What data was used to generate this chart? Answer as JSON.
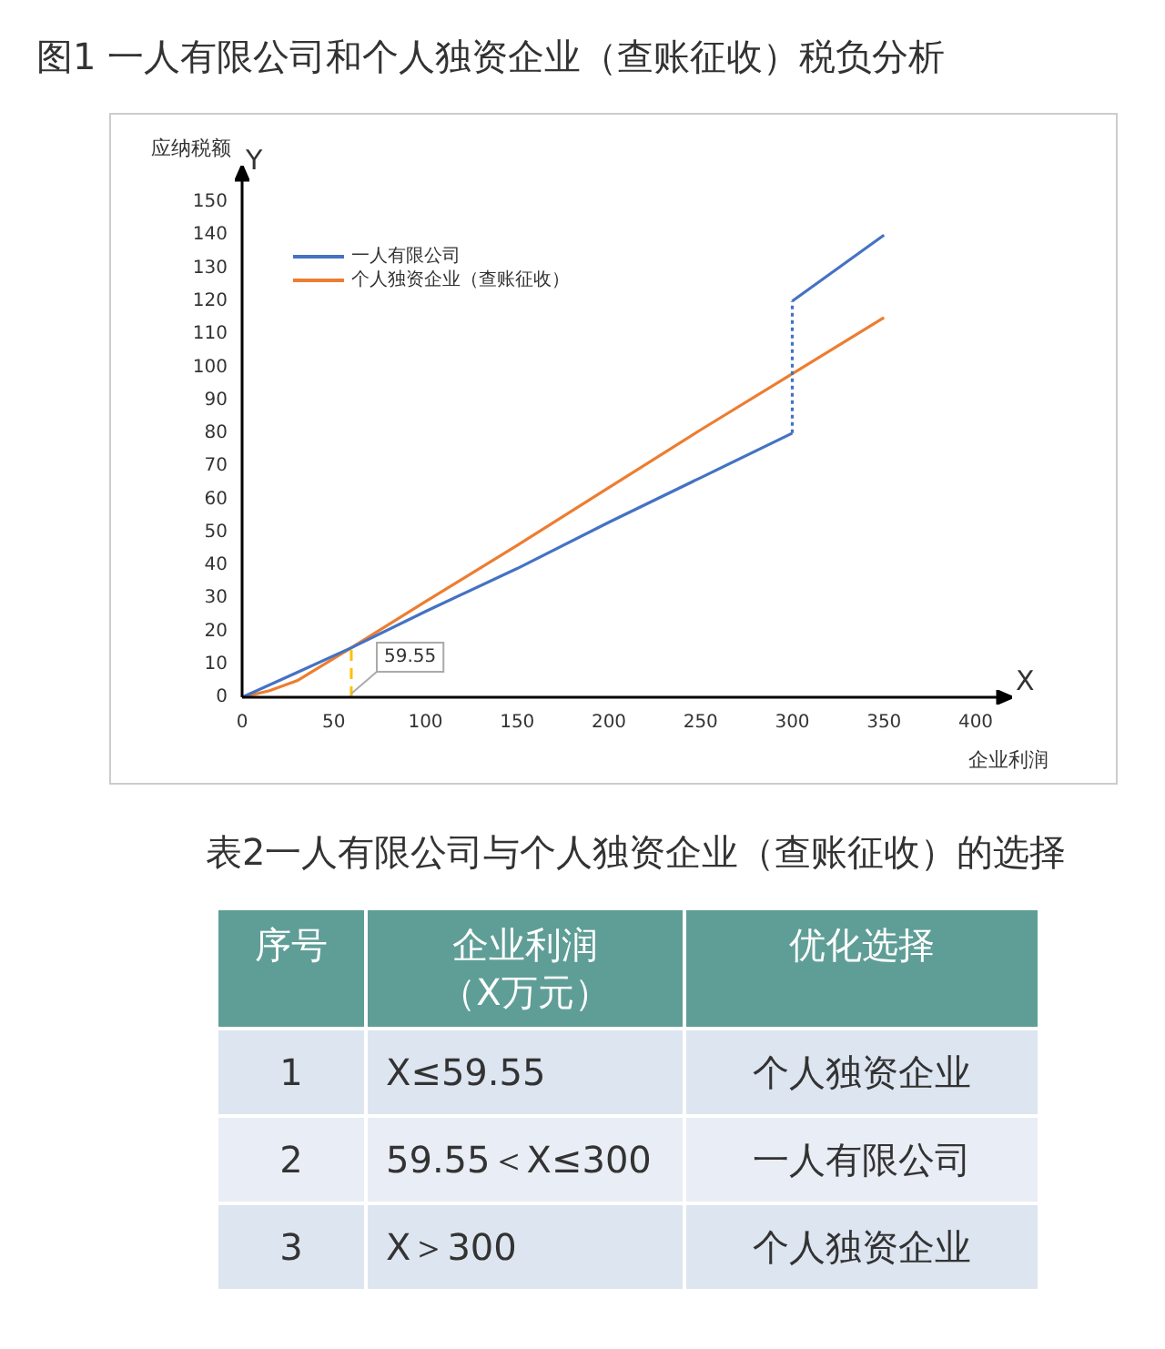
{
  "chart_data": [
    {
      "type": "line",
      "title": "图1  一人有限公司和个人独资企业（查账征收）税负分析",
      "xlabel": "企业利润",
      "ylabel": "应纳税额",
      "series": [
        {
          "name": "一人有限公司",
          "color": "#4472c4",
          "x": [
            0,
            30,
            59.55,
            100,
            150,
            200,
            250,
            300,
            300,
            350
          ],
          "values": [
            0,
            7.5,
            15,
            26,
            39,
            53,
            66.5,
            80,
            120,
            140
          ]
        },
        {
          "name": "个人独资企业（查账征收）",
          "color": "#ed7d31",
          "x": [
            0,
            15,
            30,
            59.55,
            100,
            150,
            200,
            250,
            300,
            350
          ],
          "values": [
            0,
            2,
            5,
            15,
            29,
            46,
            63.5,
            81,
            98,
            115
          ]
        }
      ],
      "xlim": [
        0,
        400
      ],
      "xticks": [
        0,
        50,
        100,
        150,
        200,
        250,
        300,
        350,
        400
      ],
      "ylim": [
        0,
        150
      ],
      "yticks": [
        0,
        10,
        20,
        30,
        40,
        50,
        60,
        70,
        80,
        90,
        100,
        110,
        120,
        130,
        140,
        150
      ],
      "grid": false,
      "legend": "top left",
      "marker": "none",
      "ref_lines": [
        {
          "axis": "x",
          "value": 59.55,
          "label": "59.55",
          "color": "#ffc000",
          "line_style": "dashed"
        }
      ],
      "annotations": [
        "X",
        "Y"
      ]
    },
    {
      "type": "other",
      "title": "表2一人有限公司与个人独资企业（查账征收）的选择",
      "annotations": [
        "序号",
        "企业利润（X万元）",
        "优化选择",
        "1",
        "X≤59.55",
        "个人独资企业",
        "2",
        "59.55＜X≤300",
        "一人有限公司",
        "3",
        "X＞300",
        "个人独资企业"
      ]
    }
  ]
}
